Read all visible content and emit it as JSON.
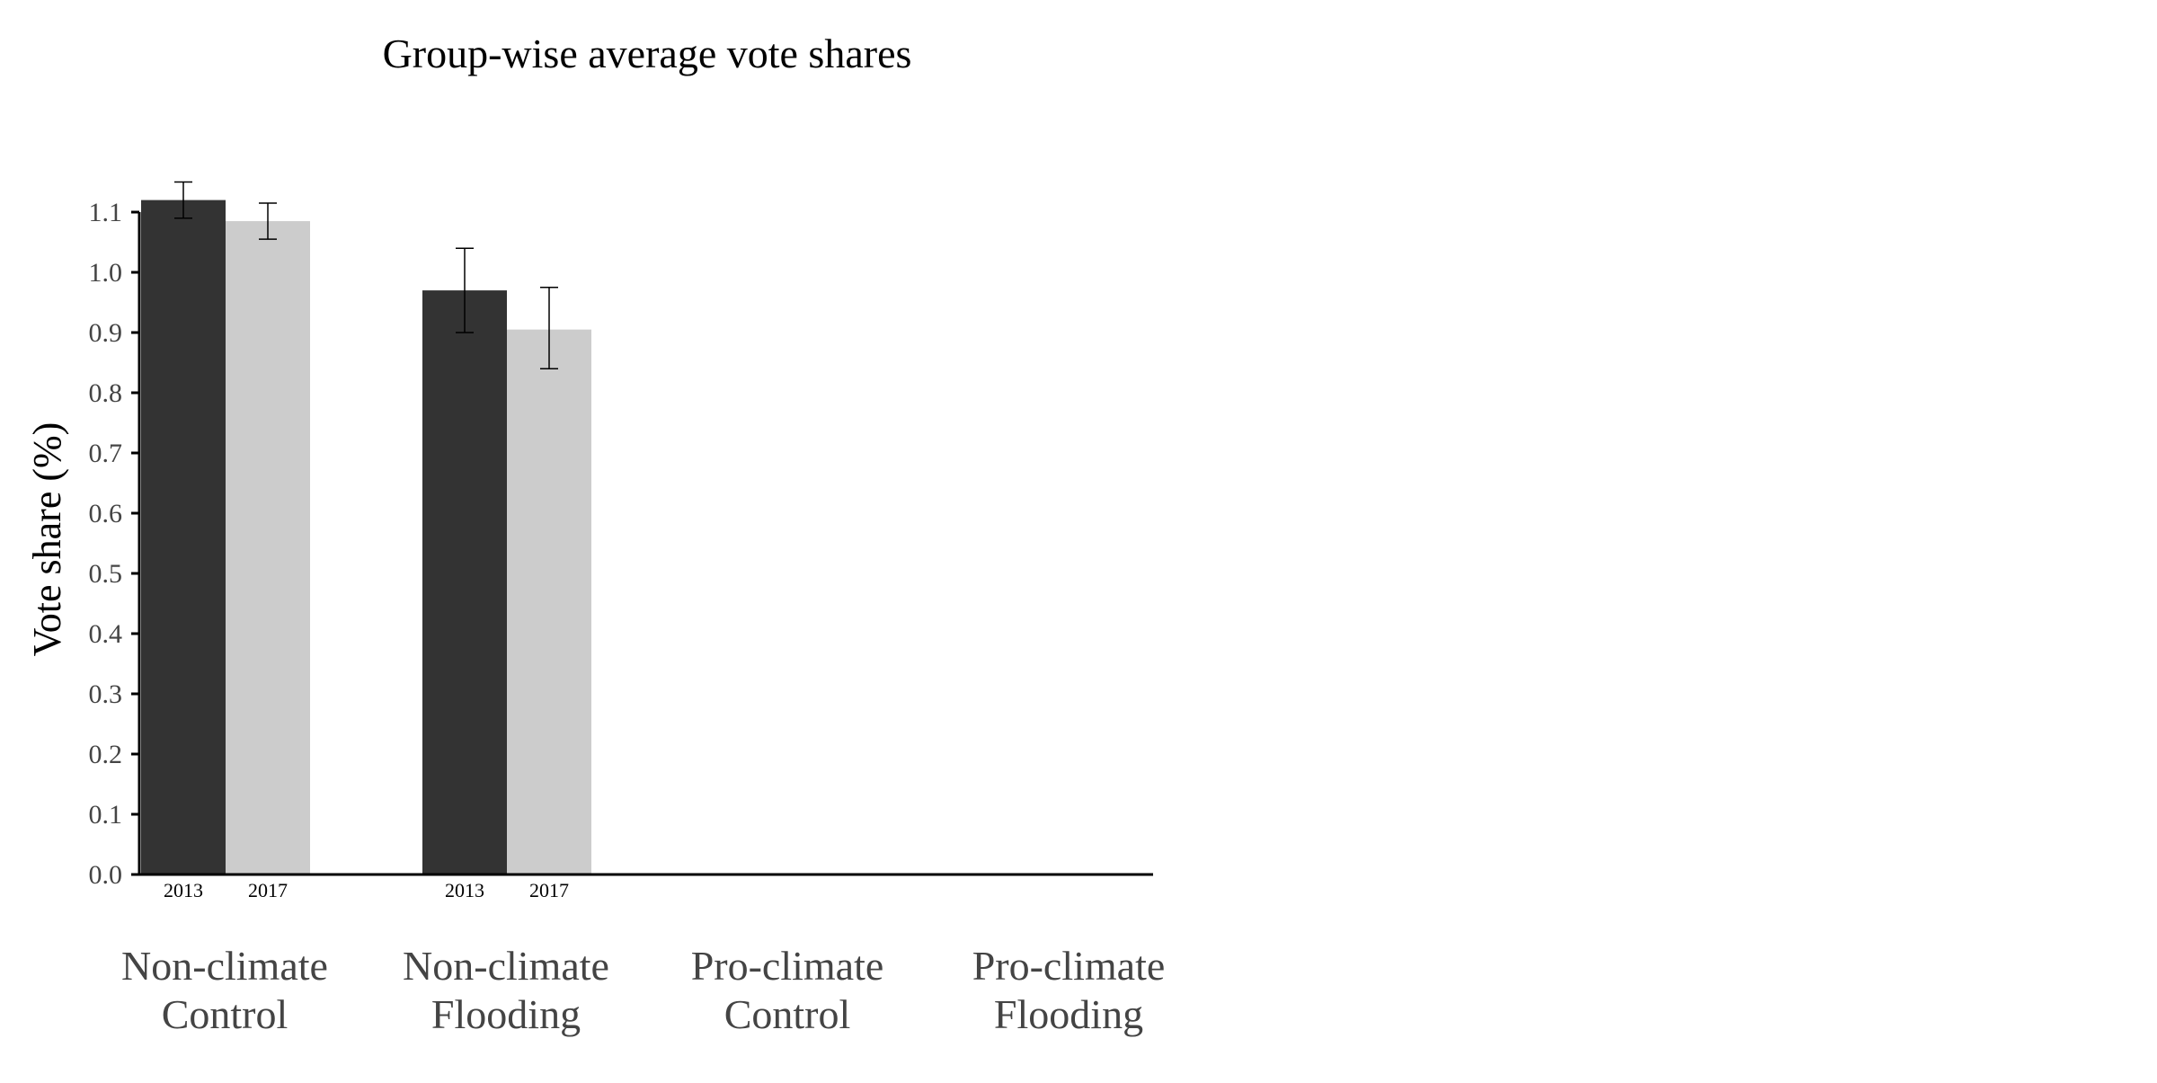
{
  "chart_data": {
    "type": "bar",
    "title": "Group-wise average vote shares",
    "xlabel": "",
    "ylabel": "Vote share (%)",
    "ylim": [
      0,
      1.1
    ],
    "yticks": [
      "0.0",
      "0.1",
      "0.2",
      "0.3",
      "0.4",
      "0.5",
      "0.6",
      "0.7",
      "0.8",
      "0.9",
      "1.0",
      "1.1"
    ],
    "categories": [
      [
        "Non-climate",
        "Control"
      ],
      [
        "Non-climate",
        "Flooding"
      ],
      [
        "Pro-climate",
        "Control"
      ],
      [
        "Pro-climate",
        "Flooding"
      ]
    ],
    "grid": false,
    "legend": "none",
    "series": [
      {
        "name": "2013",
        "color": "#333333",
        "values": [
          1.12,
          0.97,
          null,
          null
        ],
        "err_low": [
          1.09,
          0.9,
          null,
          null
        ],
        "err_high": [
          1.15,
          1.04,
          null,
          null
        ]
      },
      {
        "name": "2017",
        "color": "#cccccc",
        "values": [
          1.085,
          0.905,
          null,
          null
        ],
        "err_low": [
          1.055,
          0.84,
          null,
          null
        ],
        "err_high": [
          1.115,
          0.975,
          null,
          null
        ]
      }
    ]
  }
}
